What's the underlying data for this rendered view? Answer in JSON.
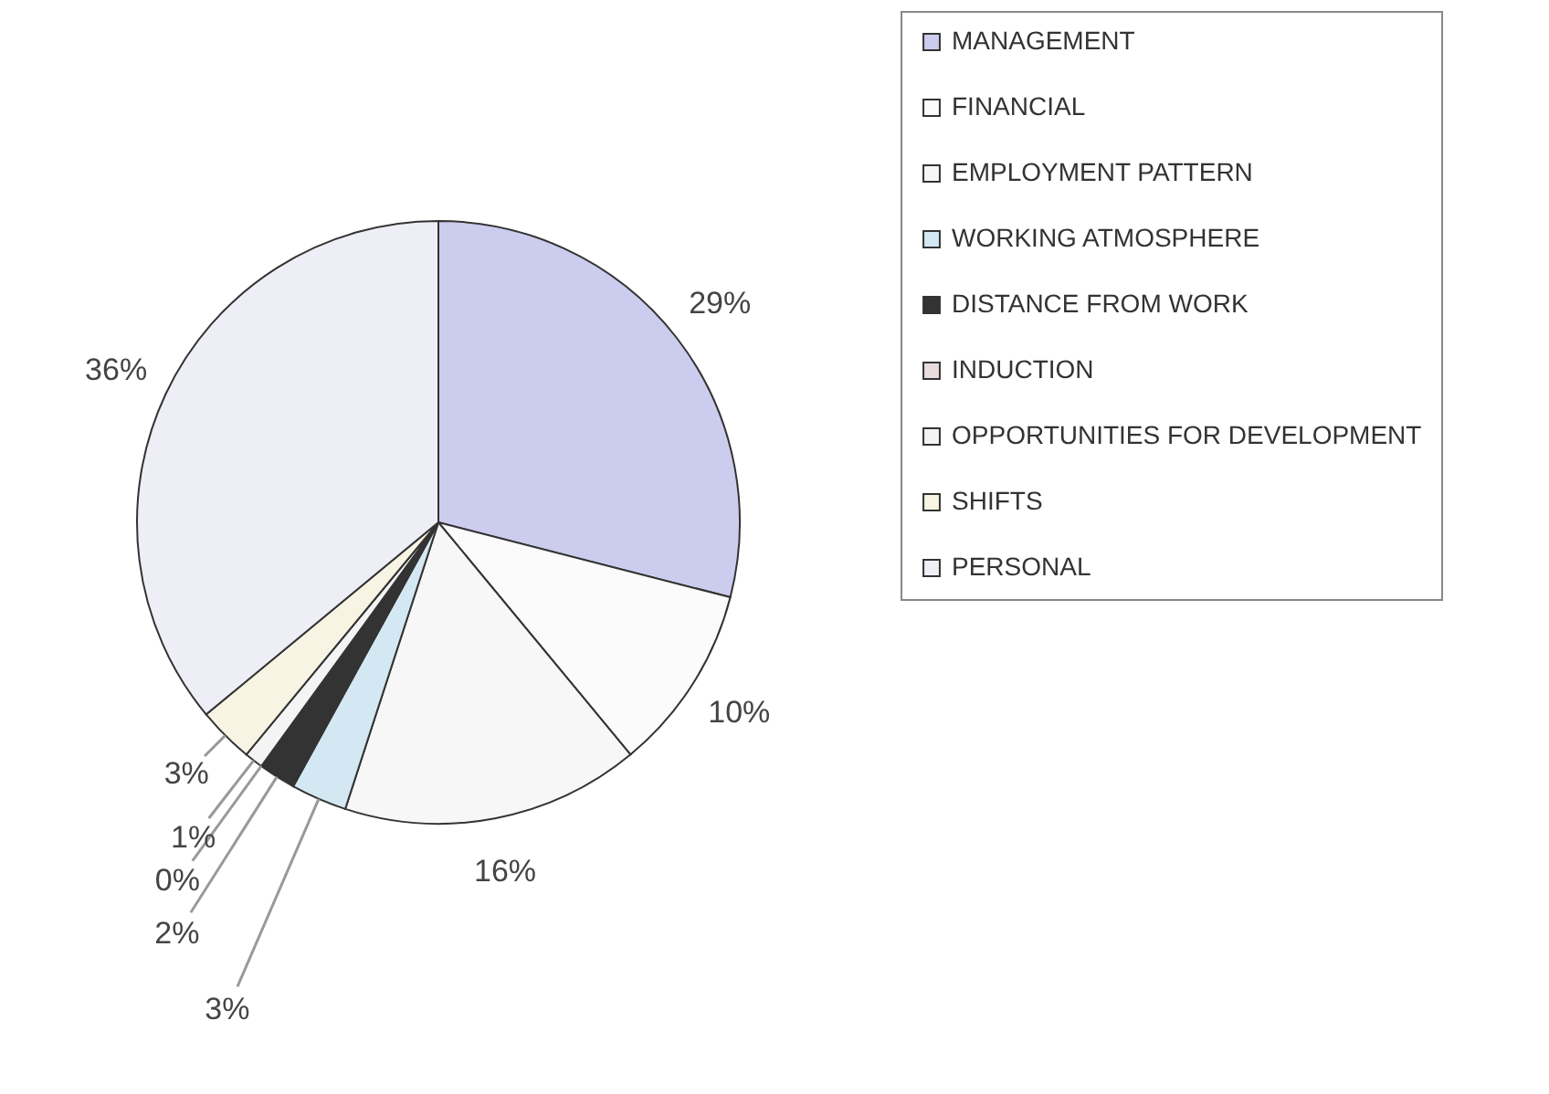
{
  "chart_data": {
    "type": "pie",
    "categories": [
      "MANAGEMENT",
      "FINANCIAL",
      "EMPLOYMENT PATTERN",
      "WORKING ATMOSPHERE",
      "DISTANCE FROM WORK",
      "INDUCTION",
      "OPPORTUNITIES FOR DEVELOPMENT",
      "SHIFTS",
      "PERSONAL"
    ],
    "values": [
      29,
      10,
      16,
      3,
      2,
      0,
      1,
      3,
      36
    ],
    "value_labels": [
      "29%",
      "10%",
      "16%",
      "3%",
      "2%",
      "0%",
      "1%",
      "3%",
      "36%"
    ],
    "colors": [
      "#ccccee",
      "#fbfbfb",
      "#f7f7f7",
      "#d3e8f2",
      "#333333",
      "#e8dcdc",
      "#f4f4f4",
      "#f8f4e4",
      "#eeeef6"
    ],
    "legend": "right"
  }
}
